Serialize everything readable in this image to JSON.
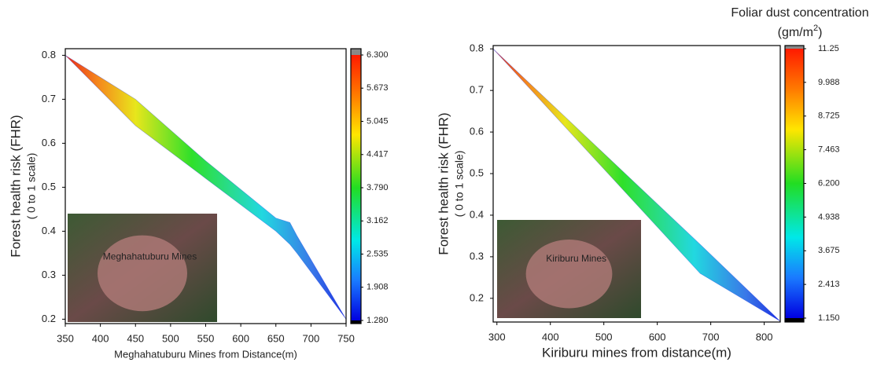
{
  "chart_data": [
    {
      "type": "band",
      "x": [
        350,
        450,
        550,
        650,
        670,
        680,
        750
      ],
      "upper": [
        0.8,
        0.7,
        0.56,
        0.43,
        0.42,
        0.39,
        0.2
      ],
      "lower": [
        0.8,
        0.64,
        0.52,
        0.4,
        0.37,
        0.35,
        0.2
      ],
      "xlim": [
        350,
        750
      ],
      "xticks": [
        350,
        400,
        450,
        500,
        550,
        600,
        650,
        700,
        750
      ],
      "ylim": [
        0.19,
        0.815
      ],
      "yticks": [
        0.2,
        0.3,
        0.4,
        0.5,
        0.6,
        0.7,
        0.8
      ],
      "xlabel": "Meghahatuburu Mines from Distance(m)",
      "ylabel": [
        "Forest health risk (FHR)",
        "( 0 to 1 scale)"
      ],
      "inset_label": "Meghahatuburu Mines",
      "colorbar": {
        "lim": [
          1.28,
          6.3
        ],
        "ticks": [
          {
            "value": 6.3,
            "label": "6.300"
          },
          5.673,
          5.045,
          4.417,
          {
            "value": 3.79,
            "label": "3.790"
          },
          3.162,
          2.535,
          1.908,
          {
            "value": 1.28,
            "label": "1.280"
          }
        ]
      }
    },
    {
      "type": "band",
      "x": [
        293,
        680,
        830
      ],
      "upper": [
        0.8,
        0.33,
        0.145
      ],
      "lower": [
        0.8,
        0.26,
        0.145
      ],
      "xlim": [
        293,
        830
      ],
      "xticks": [
        300,
        400,
        500,
        600,
        700,
        800
      ],
      "ylim": [
        0.143,
        0.808
      ],
      "yticks": [
        0.2,
        0.3,
        0.4,
        0.5,
        0.6,
        0.7,
        0.8
      ],
      "xlabel": "Kiriburu mines from distance(m)",
      "ylabel": [
        "Forest health risk (FHR)",
        "( 0 to 1 scale)"
      ],
      "inset_label": "Kiriburu  Mines",
      "colorbar_title": "Foliar dust concentration",
      "colorbar_unit": [
        "(gm/m",
        "2",
        ")"
      ],
      "colorbar": {
        "lim": [
          1.15,
          11.25
        ],
        "ticks": [
          11.25,
          9.988,
          8.725,
          7.463,
          {
            "value": 6.2,
            "label": "6.200"
          },
          4.938,
          3.675,
          2.413,
          {
            "value": 1.15,
            "label": "1.150"
          }
        ]
      }
    }
  ]
}
